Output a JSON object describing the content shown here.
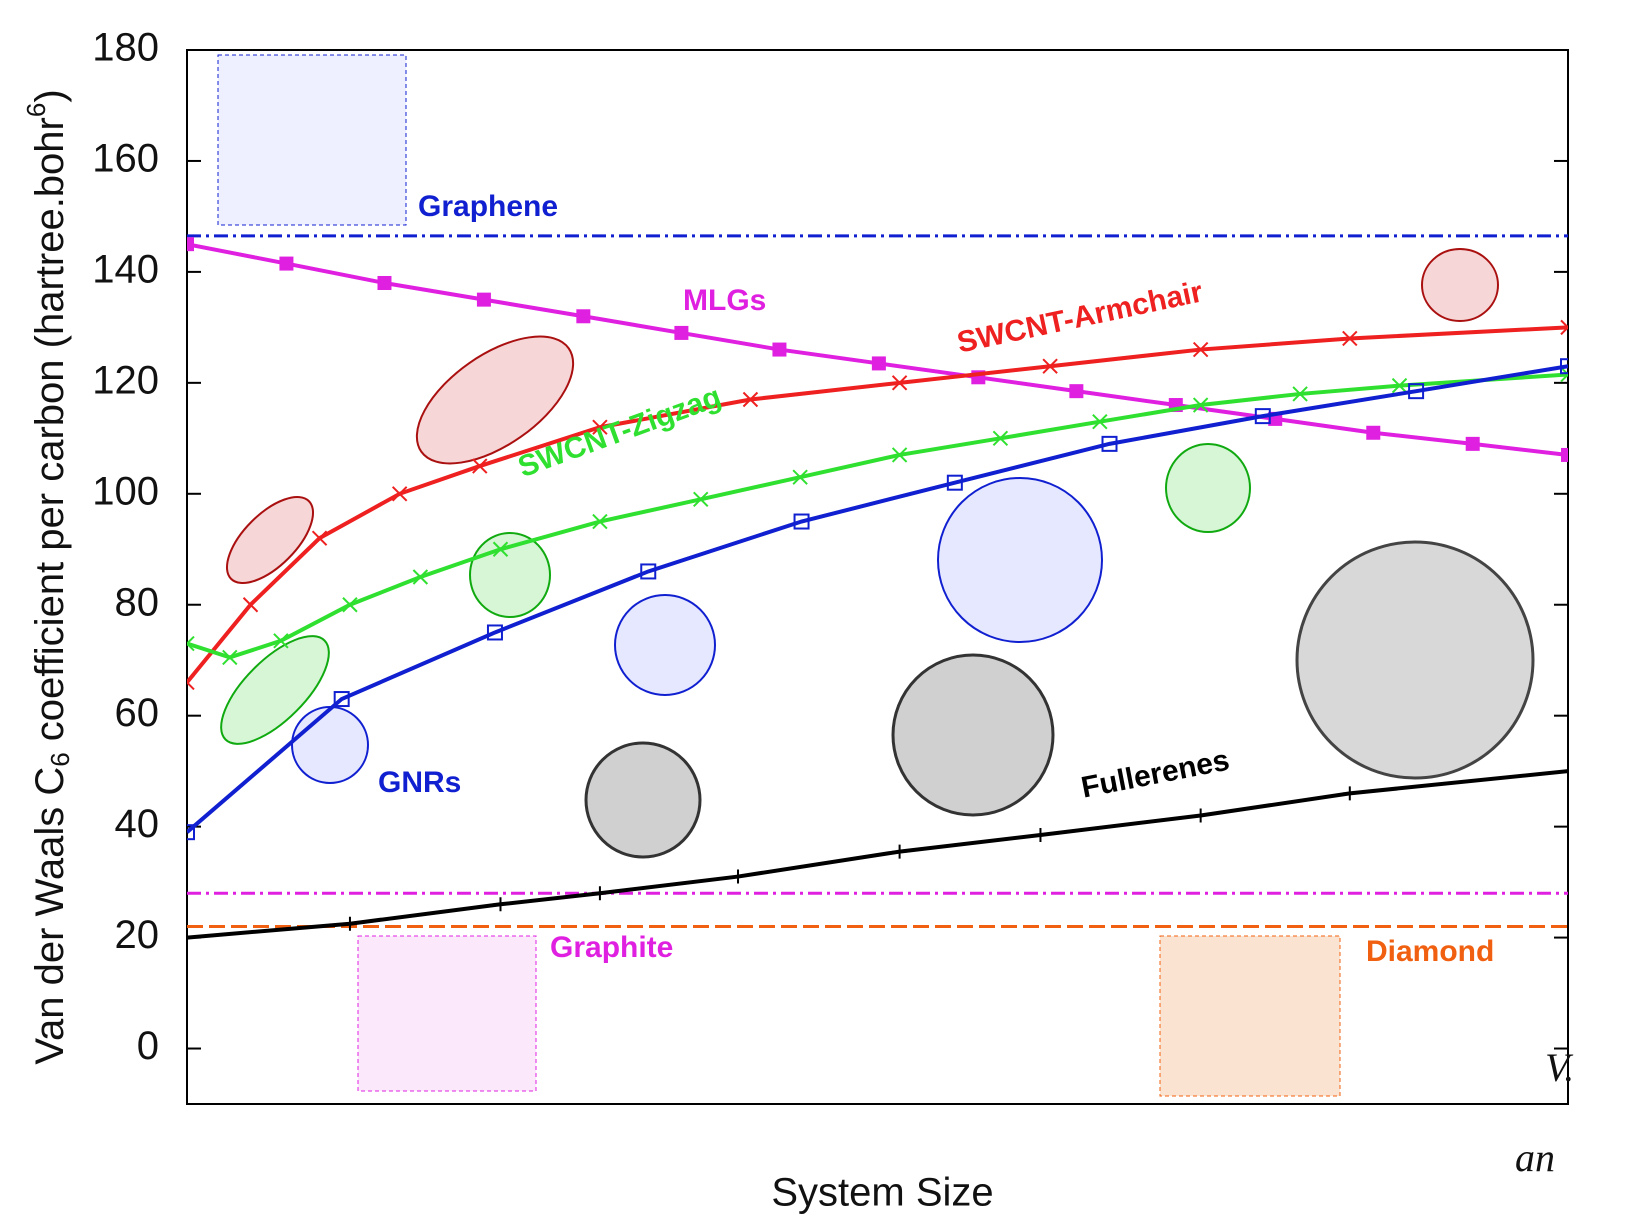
{
  "chart_data": {
    "type": "line",
    "ylabel_parts": [
      "Van der Waals C",
      "6",
      " coefficient per carbon (hartree.bohr",
      "6",
      ")"
    ],
    "xlabel": "System Size",
    "xlim": [
      0,
      100
    ],
    "ylim": [
      -10,
      180
    ],
    "yticks": [
      0,
      20,
      40,
      60,
      80,
      100,
      120,
      140,
      160,
      180
    ],
    "series": [
      {
        "name": "MLGs",
        "color": "#e020e0",
        "marker": "filled-square",
        "x": [
          0,
          7.2,
          14.3,
          21.5,
          28.7,
          35.8,
          42.9,
          50.1,
          57.3,
          64.4,
          71.6,
          78.8,
          85.9,
          93.1,
          100
        ],
        "values": [
          145,
          141.5,
          138,
          135,
          132,
          129,
          126,
          123.5,
          121,
          118.5,
          116,
          113.5,
          111,
          109,
          107
        ]
      },
      {
        "name": "SWCNT-Armchair",
        "color": "#ee2020",
        "marker": "cross",
        "x": [
          0,
          4.6,
          9.6,
          15.4,
          21.2,
          29.9,
          40.8,
          51.6,
          62.5,
          73.4,
          84.2,
          100
        ],
        "values": [
          66,
          80,
          92,
          100,
          105,
          112,
          117,
          120,
          123,
          126,
          128,
          130
        ]
      },
      {
        "name": "SWCNT-Zigzag",
        "color": "#30e030",
        "marker": "cross",
        "x": [
          0,
          3.1,
          6.8,
          11.8,
          16.9,
          22.7,
          29.9,
          37.2,
          44.4,
          51.6,
          58.9,
          66.1,
          73.4,
          80.6,
          87.8,
          100
        ],
        "values": [
          73,
          70.5,
          73.5,
          80,
          85,
          90,
          95,
          99,
          103,
          107,
          110,
          113,
          116,
          118,
          119.5,
          121.5
        ]
      },
      {
        "name": "GNRs",
        "color": "#1020d0",
        "marker": "open-square",
        "x": [
          0,
          11.2,
          22.3,
          33.4,
          44.5,
          55.6,
          66.8,
          77.9,
          89,
          100
        ],
        "values": [
          39,
          63,
          75,
          86,
          95,
          102,
          109,
          114,
          118.5,
          123
        ]
      },
      {
        "name": "Fullerenes",
        "color": "#000000",
        "marker": "plus",
        "x": [
          0,
          11.8,
          22.7,
          29.9,
          39.9,
          51.6,
          61.8,
          73.4,
          84.2,
          100
        ],
        "values": [
          20,
          22.5,
          26,
          28,
          31,
          35.5,
          38.5,
          42,
          46,
          50
        ]
      }
    ],
    "reference_lines": [
      {
        "name": "Graphene",
        "value": 146.5,
        "color": "#1020d0",
        "dash": "dash-dot"
      },
      {
        "name": "Graphite",
        "value": 28,
        "color": "#e020e0",
        "dash": "dash-dot"
      },
      {
        "name": "Diamond",
        "value": 22,
        "color": "#f06010",
        "dash": "dashed"
      }
    ],
    "annotations": [
      "V.",
      "an"
    ]
  }
}
